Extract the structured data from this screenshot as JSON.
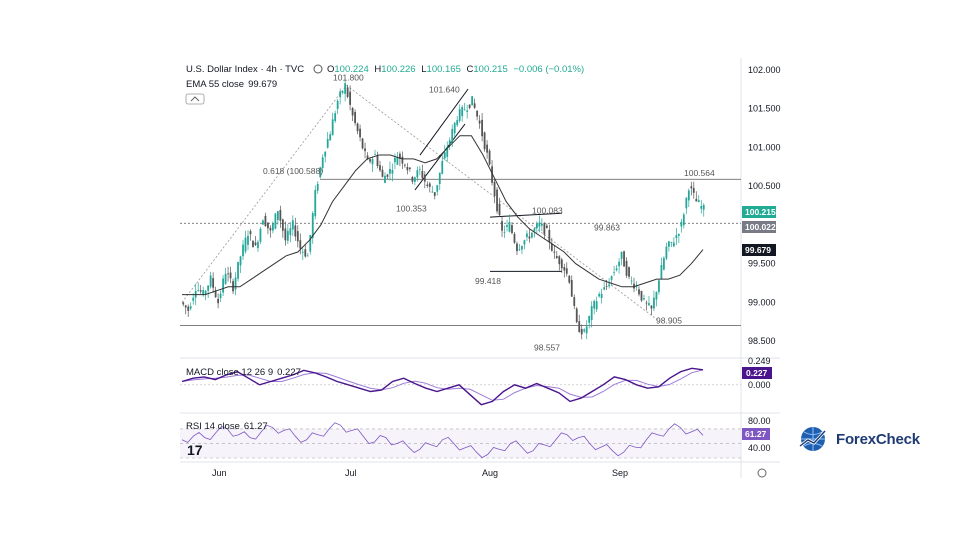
{
  "header": {
    "symbol": "U.S. Dollar Index · 4h · TVC",
    "ohlc": {
      "o_label": "O",
      "o": "100.224",
      "h_label": "H",
      "h": "100.226",
      "l_label": "L",
      "l": "100.165",
      "c_label": "C",
      "c": "100.215",
      "change": "−0.006 (−0.01%)"
    },
    "ema_label": "EMA 55 close",
    "ema_value": "99.679"
  },
  "macd_panel": {
    "label": "MACD close 12 26 9",
    "value": "0.227",
    "badge": "0.227",
    "zero": "0.000",
    "top_tick": "0.249"
  },
  "rsi_panel": {
    "label": "RSI 14 close",
    "value": "61.27",
    "badge": "61.27",
    "tick_upper": "80.00",
    "tick_lower": "40.00"
  },
  "colors": {
    "up": "#26a69a",
    "down": "#555555",
    "price_green": "#22ab94",
    "ema": "#333333",
    "macd_line": "#4a148c",
    "macd_signal": "#9c7bd9",
    "rsi": "#7e57c2"
  },
  "chart_data": {
    "type": "candlestick",
    "title": "U.S. Dollar Index · 4h · TVC",
    "y_ticks": [
      "102.000",
      "101.500",
      "101.000",
      "100.500",
      "99.500",
      "99.000",
      "98.500"
    ],
    "ylim": [
      98.45,
      102.1
    ],
    "x_ticks": [
      "Jun",
      "Jul",
      "Aug",
      "Sep"
    ],
    "price_path": [
      99.0,
      98.9,
      99.2,
      99.1,
      99.3,
      99.0,
      99.4,
      99.2,
      99.6,
      99.9,
      99.7,
      100.1,
      99.9,
      100.2,
      99.8,
      100.0,
      99.7,
      99.6,
      100.4,
      100.9,
      101.2,
      101.6,
      101.8,
      101.4,
      101.1,
      100.8,
      100.9,
      100.6,
      100.7,
      100.9,
      100.8,
      100.6,
      100.7,
      100.5,
      100.4,
      100.8,
      101.1,
      101.4,
      101.5,
      101.6,
      101.3,
      100.9,
      100.4,
      99.9,
      100.0,
      99.7,
      99.8,
      99.9,
      100.0,
      99.9,
      99.6,
      99.5,
      99.3,
      98.7,
      98.6,
      98.9,
      99.1,
      99.2,
      99.4,
      99.6,
      99.3,
      99.2,
      99.0,
      98.9,
      99.3,
      99.7,
      99.8,
      100.0,
      100.5,
      100.3,
      100.2
    ],
    "ema_path": [
      99.1,
      99.1,
      99.1,
      99.15,
      99.2,
      99.2,
      99.3,
      99.4,
      99.5,
      99.6,
      99.65,
      99.8,
      100.0,
      100.3,
      100.5,
      100.7,
      100.85,
      100.9,
      100.9,
      100.85,
      100.85,
      100.8,
      100.85,
      101.0,
      101.15,
      101.15,
      100.9,
      100.6,
      100.3,
      100.1,
      99.95,
      99.85,
      99.75,
      99.65,
      99.5,
      99.4,
      99.3,
      99.25,
      99.2,
      99.2,
      99.25,
      99.3,
      99.3,
      99.35,
      99.5,
      99.68
    ],
    "annotations": [
      {
        "label": "101.800",
        "value": 101.8
      },
      {
        "label": "101.640",
        "value": 101.64
      },
      {
        "label": "0.618 (100.588)",
        "value": 100.588
      },
      {
        "label": "100.353",
        "value": 100.353
      },
      {
        "label": "100.083",
        "value": 100.083
      },
      {
        "label": "99.863",
        "value": 99.863
      },
      {
        "label": "99.418",
        "value": 99.418
      },
      {
        "label": "98.557",
        "value": 98.557
      },
      {
        "label": "98.905",
        "value": 98.905
      },
      {
        "label": "100.564",
        "value": 100.564
      }
    ],
    "horizontal_levels": [
      {
        "value": 100.588,
        "style": "solid"
      },
      {
        "value": 100.02,
        "style": "dotted"
      },
      {
        "value": 98.7,
        "style": "solid"
      }
    ],
    "price_badges": [
      {
        "label": "100.215",
        "value": 100.215,
        "color": "#22ab94"
      },
      {
        "label": "100.022",
        "value": 100.022,
        "color": "#787b86"
      },
      {
        "label": "99.679",
        "value": 99.679,
        "color": "#131722"
      }
    ],
    "macd": [
      0.05,
      0.1,
      0.12,
      0.08,
      0.15,
      0.2,
      0.1,
      0.0,
      0.05,
      0.1,
      0.15,
      0.22,
      0.18,
      0.12,
      0.05,
      0.0,
      -0.05,
      -0.1,
      -0.08,
      0.05,
      0.1,
      0.02,
      -0.05,
      -0.1,
      -0.05,
      0.0,
      -0.15,
      -0.3,
      -0.25,
      -0.1,
      0.0,
      -0.05,
      0.02,
      -0.05,
      -0.12,
      -0.25,
      -0.2,
      -0.1,
      0.0,
      0.12,
      0.08,
      0.0,
      -0.05,
      -0.03,
      0.1,
      0.2,
      0.25,
      0.227
    ],
    "rsi": [
      55,
      60,
      58,
      65,
      70,
      62,
      58,
      66,
      72,
      68,
      60,
      55,
      62,
      70,
      75,
      68,
      60,
      52,
      58,
      50,
      45,
      42,
      48,
      55,
      50,
      44,
      38,
      35,
      42,
      50,
      45,
      40,
      48,
      55,
      62,
      58,
      50,
      45,
      40,
      38,
      45,
      55,
      62,
      70,
      72,
      66,
      61.27
    ]
  }
}
